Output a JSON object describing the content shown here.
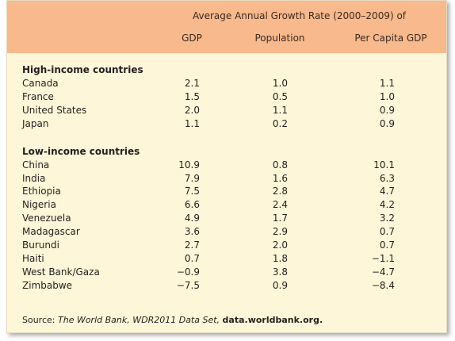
{
  "header": {
    "group_title": "Average Annual Growth Rate (2000–2009) of",
    "columns": [
      "GDP",
      "Population",
      "Per Capita GDP"
    ]
  },
  "groups": [
    {
      "title": "High-income countries",
      "rows": [
        {
          "country": "Canada",
          "values": [
            "2.1",
            "1.0",
            "1.1"
          ]
        },
        {
          "country": "France",
          "values": [
            "1.5",
            "0.5",
            "1.0"
          ]
        },
        {
          "country": "United States",
          "values": [
            "2.0",
            "1.1",
            "0.9"
          ]
        },
        {
          "country": "Japan",
          "values": [
            "1.1",
            "0.2",
            "0.9"
          ]
        }
      ]
    },
    {
      "title": "Low-income countries",
      "rows": [
        {
          "country": "China",
          "values": [
            "10.9",
            "0.8",
            "10.1"
          ]
        },
        {
          "country": "India",
          "values": [
            "7.9",
            "1.6",
            "6.3"
          ]
        },
        {
          "country": "Ethiopia",
          "values": [
            "7.5",
            "2.8",
            "4.7"
          ]
        },
        {
          "country": "Nigeria",
          "values": [
            "6.6",
            "2.4",
            "4.2"
          ]
        },
        {
          "country": "Venezuela",
          "values": [
            "4.9",
            "1.7",
            "3.2"
          ]
        },
        {
          "country": "Madagascar",
          "values": [
            "3.6",
            "2.9",
            "0.7"
          ]
        },
        {
          "country": "Burundi",
          "values": [
            "2.7",
            "2.0",
            "0.7"
          ]
        },
        {
          "country": "Haiti",
          "values": [
            "0.7",
            "1.8",
            "−1.1"
          ]
        },
        {
          "country": "West Bank/Gaza",
          "values": [
            "−0.9",
            "3.8",
            "−4.7"
          ]
        },
        {
          "country": "Zimbabwe",
          "values": [
            "−7.5",
            "0.9",
            "−8.4"
          ]
        }
      ]
    }
  ],
  "source": {
    "label": "Source:",
    "citation": "The World Bank, WDR2011 Data Set,",
    "url": "data.worldbank.org."
  }
}
